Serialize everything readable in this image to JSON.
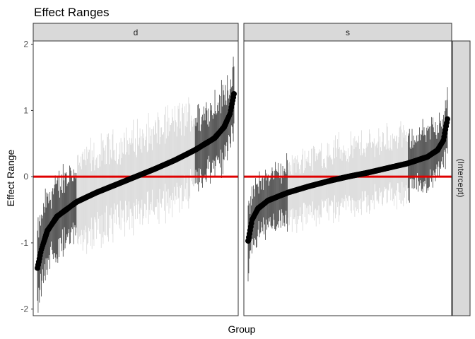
{
  "chart_data": {
    "type": "scatter",
    "title": "Effect Ranges",
    "xlabel": "Group",
    "ylabel": "Effect Range",
    "ylim": [
      -2.1,
      2.05
    ],
    "yticks": [
      -2,
      -1,
      0,
      1,
      2
    ],
    "ytick_labels": [
      "-2",
      "-1",
      "0",
      "1",
      "2"
    ],
    "row_facet_label": "(Intercept)",
    "reference_line": {
      "y": 0,
      "color": "#e00000"
    },
    "grid": false,
    "legend": "none",
    "point_color": "#000000",
    "interval_colors": [
      "#111111",
      "#c8c8c8"
    ],
    "panels": [
      {
        "facet": "d",
        "n_groups": 300,
        "sorted_effect_quantiles": {
          "q": [
            0,
            0.02,
            0.05,
            0.1,
            0.2,
            0.3,
            0.4,
            0.5,
            0.6,
            0.7,
            0.8,
            0.9,
            0.95,
            0.98,
            1
          ],
          "effect": [
            -1.38,
            -1.1,
            -0.82,
            -0.6,
            -0.38,
            -0.24,
            -0.12,
            0.0,
            0.12,
            0.25,
            0.4,
            0.58,
            0.75,
            0.95,
            1.25
          ]
        },
        "interval_halfwidth_approx": 0.45
      },
      {
        "facet": "s",
        "n_groups": 300,
        "sorted_effect_quantiles": {
          "q": [
            0,
            0.02,
            0.05,
            0.1,
            0.2,
            0.3,
            0.4,
            0.5,
            0.6,
            0.7,
            0.8,
            0.9,
            0.95,
            0.98,
            1
          ],
          "effect": [
            -0.97,
            -0.65,
            -0.48,
            -0.36,
            -0.24,
            -0.15,
            -0.07,
            0.0,
            0.06,
            0.13,
            0.2,
            0.3,
            0.4,
            0.55,
            0.87
          ]
        },
        "interval_halfwidth_approx": 0.35
      }
    ]
  }
}
